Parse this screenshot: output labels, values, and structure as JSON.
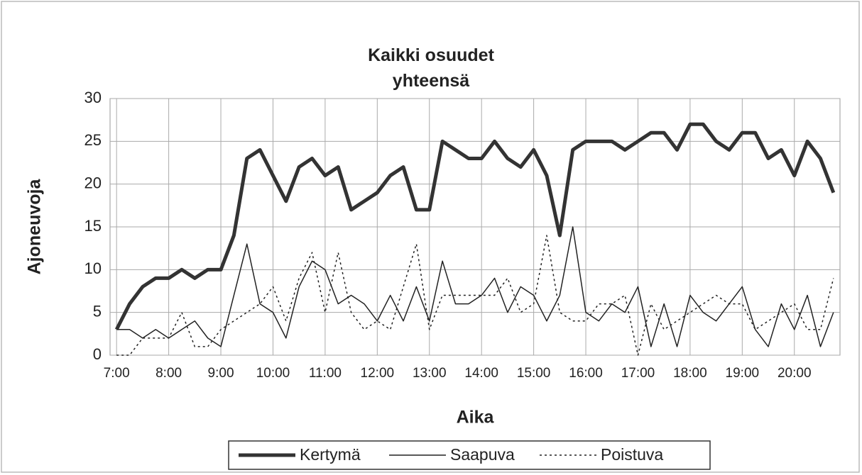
{
  "chart_data": {
    "type": "line",
    "title": "Kaikki osuudet yhteensä",
    "xlabel": "Aika",
    "ylabel": "Ajoneuvoja",
    "categories": [
      "7:00",
      null,
      null,
      null,
      "8:00",
      null,
      null,
      null,
      "9:00",
      null,
      null,
      null,
      "10:00",
      null,
      null,
      null,
      "11:00",
      null,
      null,
      null,
      "12:00",
      null,
      null,
      null,
      "13:00",
      null,
      null,
      null,
      "14:00",
      null,
      null,
      null,
      "15:00",
      null,
      null,
      null,
      "16:00",
      null,
      null,
      null,
      "17:00",
      null,
      null,
      null,
      "18:00",
      null,
      null,
      null,
      "19:00",
      null,
      null,
      null,
      "20:00",
      null,
      null,
      null
    ],
    "series": [
      {
        "name": "Kertymä",
        "color": "#333333",
        "width": 5,
        "dash": "none",
        "values": [
          3,
          6,
          8,
          9,
          9,
          10,
          9,
          10,
          10,
          14,
          23,
          24,
          21,
          18,
          22,
          23,
          21,
          22,
          17,
          18,
          19,
          21,
          22,
          17,
          17,
          25,
          24,
          23,
          23,
          25,
          23,
          22,
          24,
          21,
          14,
          24,
          25,
          25,
          25,
          24,
          25,
          26,
          26,
          24,
          27,
          27,
          25,
          24,
          26,
          26,
          23,
          24,
          21,
          25,
          23,
          19
        ]
      },
      {
        "name": "Saapuva",
        "color": "#222222",
        "width": 1.5,
        "dash": "none",
        "values": [
          3,
          3,
          2,
          3,
          2,
          3,
          4,
          2,
          1,
          7,
          13,
          6,
          5,
          2,
          8,
          11,
          10,
          6,
          7,
          6,
          4,
          7,
          4,
          8,
          4,
          11,
          6,
          6,
          7,
          9,
          5,
          8,
          7,
          4,
          7,
          15,
          5,
          4,
          6,
          5,
          8,
          1,
          6,
          1,
          7,
          5,
          4,
          6,
          8,
          3,
          1,
          6,
          3,
          7,
          1,
          5
        ]
      },
      {
        "name": "Poistuva",
        "color": "#222222",
        "width": 1.5,
        "dash": "3,4",
        "values": [
          0,
          0,
          2,
          2,
          2,
          5,
          1,
          1,
          3,
          4,
          5,
          6,
          8,
          4,
          9,
          12,
          5,
          12,
          5,
          3,
          4,
          3,
          8,
          13,
          3,
          7,
          7,
          7,
          7,
          7,
          9,
          5,
          6,
          14,
          5,
          4,
          4,
          6,
          6,
          7,
          0,
          6,
          3,
          4,
          5,
          6,
          7,
          6,
          6,
          3,
          4,
          5,
          6,
          3,
          3,
          9
        ]
      }
    ],
    "ylim": [
      0,
      30
    ],
    "yticks": [
      0,
      5,
      10,
      15,
      20,
      25,
      30
    ],
    "grid": true,
    "legend": "bottom"
  }
}
